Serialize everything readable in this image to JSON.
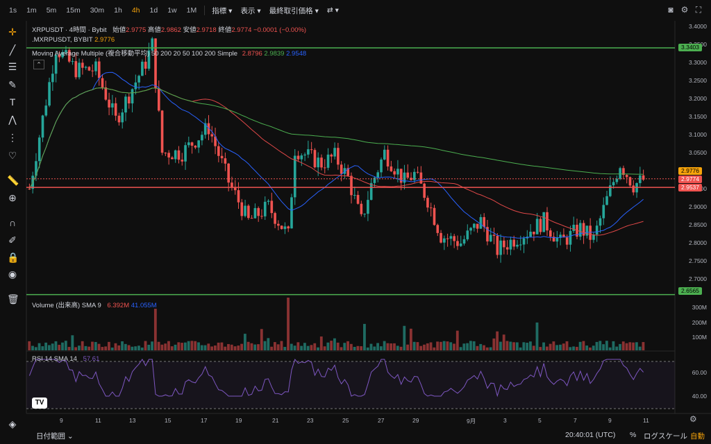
{
  "toolbar": {
    "timeframes": [
      "1s",
      "1m",
      "5m",
      "15m",
      "30m",
      "1h",
      "4h",
      "1d",
      "1w",
      "1M"
    ],
    "active_timeframe": "4h",
    "menus": [
      "指標",
      "表示",
      "最終取引価格"
    ]
  },
  "legend": {
    "symbol": "XRPUSDT · 4時間 · Bybit",
    "open_label": "始値",
    "open": "2.9775",
    "high_label": "高値",
    "high": "2.9862",
    "low_label": "安値",
    "low": "2.9718",
    "close_label": "終値",
    "close": "2.9774",
    "change": "−0.0001 (−0.00%)",
    "mark_symbol": ".MXRPUSDT, BYBIT",
    "mark_value": "2.9776",
    "ma_name": "Moving Average Multiple (複合移動平均) 50 200 20 50 100 200 Simple",
    "ma1": "2.8796",
    "ma2": "2.9839",
    "ma3": "2.9548",
    "volume_label": "Volume (出来高) SMA 9",
    "vol1": "6.392M",
    "vol2": "41.055M",
    "rsi_label": "RSI 14 SMA 14",
    "rsi_value": "57.61"
  },
  "price_axis": [
    "3.4000",
    "3.3500",
    "3.3000",
    "3.2500",
    "3.2000",
    "3.1500",
    "3.1000",
    "3.0500",
    "2.9500",
    "2.9000",
    "2.8500",
    "2.8000",
    "2.7500",
    "2.7000"
  ],
  "price_tags": {
    "top_line": "3.3403",
    "mark": "2.9776",
    "last": "2.9774",
    "red_line": "2.9537",
    "bottom_line": "2.6565"
  },
  "volume_axis": [
    "300M",
    "200M",
    "100M"
  ],
  "rsi_axis": [
    "60.00",
    "40.00"
  ],
  "dates": [
    "9",
    "11",
    "13",
    "15",
    "17",
    "19",
    "21",
    "23",
    "25",
    "27",
    "29",
    "9月",
    "3",
    "5",
    "7",
    "9",
    "11"
  ],
  "bottom": {
    "range_label": "日付範囲",
    "time": "20:40:01 (UTC)",
    "percent": "%",
    "log": "ログスケール",
    "auto": "自動"
  },
  "colors": {
    "up": "#26a69a",
    "down": "#ef5350",
    "ma_blue": "#2962ff",
    "ma_red": "#e04848",
    "ma_green": "#4caf50",
    "accent": "#f6a30a",
    "rsi": "#7e57c2"
  }
}
